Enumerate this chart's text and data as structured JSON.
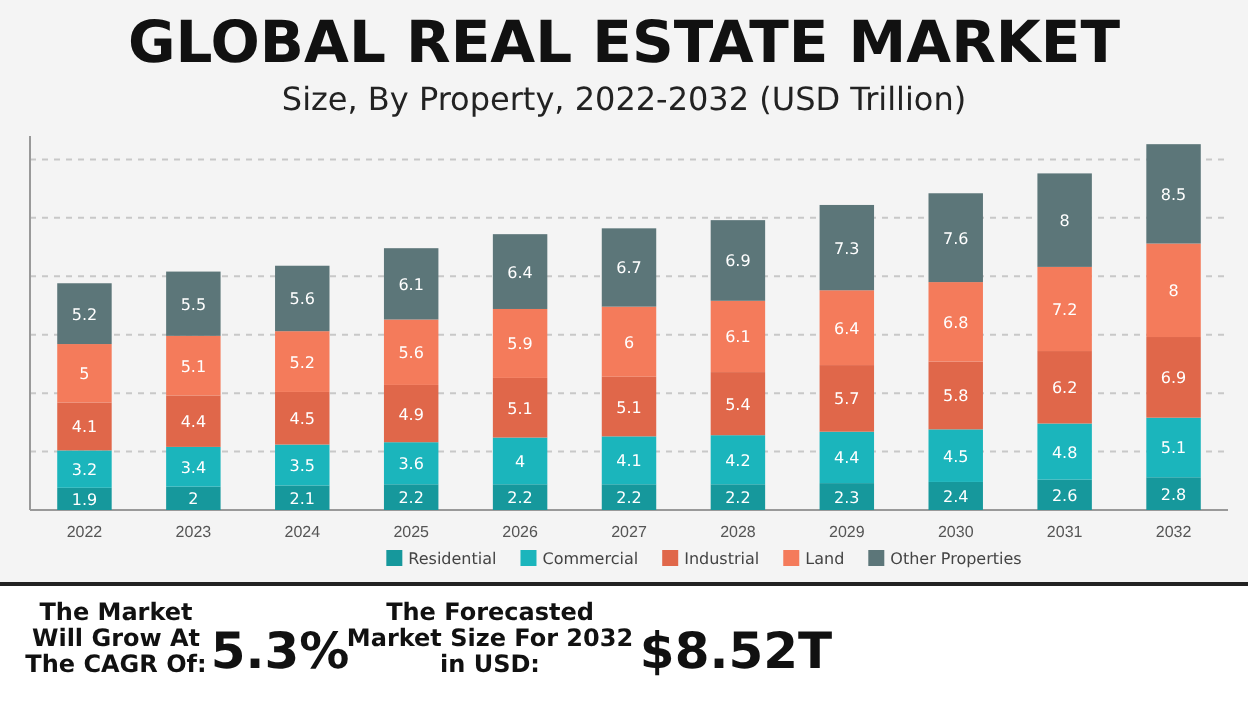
{
  "chart_data": {
    "type": "bar",
    "title": "GLOBAL REAL ESTATE MARKET",
    "subtitle": "Size, By Property, 2022-2032 (USD Trillion)",
    "categories": [
      "2022",
      "2023",
      "2024",
      "2025",
      "2026",
      "2027",
      "2028",
      "2029",
      "2030",
      "2031",
      "2032"
    ],
    "stacked": true,
    "data_labels": true,
    "grid": "y",
    "legend": "bottom",
    "tick_labels": "x",
    "ylim": [
      0,
      32
    ],
    "yticks": [
      {
        "value": 5,
        "label": null
      },
      {
        "value": 10,
        "label": null
      },
      {
        "value": 15,
        "label": null
      },
      {
        "value": 20,
        "label": null
      },
      {
        "value": 25,
        "label": null
      },
      {
        "value": 30,
        "label": null
      }
    ],
    "series": [
      {
        "name": "Residential",
        "color": "#16989c",
        "values": [
          1.9,
          2,
          2.1,
          2.2,
          2.2,
          2.2,
          2.2,
          2.3,
          2.4,
          2.6,
          2.8
        ]
      },
      {
        "name": "Commercial",
        "color": "#1bb5bc",
        "values": [
          3.2,
          3.4,
          3.5,
          3.6,
          4,
          4.1,
          4.2,
          4.4,
          4.5,
          4.8,
          5.1
        ]
      },
      {
        "name": "Industrial",
        "color": "#e0674a",
        "values": [
          4.1,
          4.4,
          4.5,
          4.9,
          5.1,
          5.1,
          5.4,
          5.7,
          5.8,
          6.2,
          6.9
        ]
      },
      {
        "name": "Land",
        "color": "#f47b5b",
        "values": [
          5,
          5.1,
          5.2,
          5.6,
          5.9,
          6,
          6.1,
          6.4,
          6.8,
          7.2,
          8
        ]
      },
      {
        "name": "Other Properties",
        "color": "#5c7679",
        "values": [
          5.2,
          5.5,
          5.6,
          6.1,
          6.4,
          6.7,
          6.9,
          7.3,
          7.6,
          8,
          8.5
        ]
      }
    ],
    "annotations": [
      "The Market Will Grow At The CAGR Of:",
      "5.3%",
      "The Forecasted Market Size For 2032 in USD:",
      "$8.52T"
    ]
  }
}
